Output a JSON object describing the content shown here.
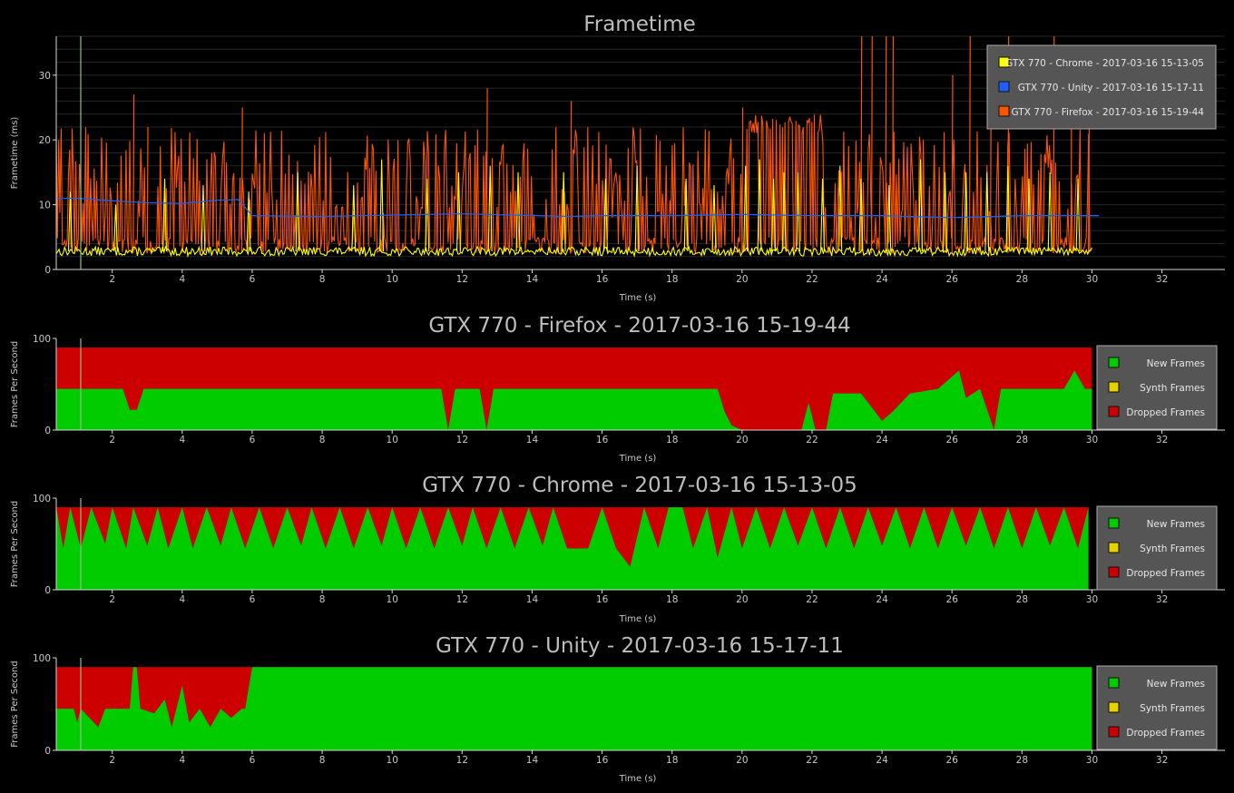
{
  "colors": {
    "background": "#000000",
    "grid": "#262626",
    "axis": "#d9d9d9",
    "chrome": "#ffff00",
    "unity": "#1f5fff",
    "firefox": "#ff5500",
    "new_frames": "#00cc00",
    "synth_frames": "#e6d200",
    "dropped_frames": "#cc0000",
    "legend_bg": "#555555",
    "cursor": "#90c08a"
  },
  "chart_data": [
    {
      "type": "line",
      "title": "Frametime",
      "xlabel": "Time (s)",
      "ylabel": "Frametime (ms)",
      "xlim": [
        0.4,
        33.8
      ],
      "ylim": [
        0,
        36
      ],
      "xticks": [
        "2",
        "4",
        "6",
        "8",
        "10",
        "12",
        "14",
        "16",
        "18",
        "20",
        "22",
        "24",
        "26",
        "28",
        "30",
        "32"
      ],
      "yticks": [
        "0",
        "10",
        "20",
        "30"
      ],
      "legend_position": "top-right",
      "cursor_x": 1.1,
      "series": [
        {
          "name": "GTX 770 - Chrome - 2017-03-16 15-13-05",
          "color_key": "chrome",
          "x_range": [
            0.4,
            30.0
          ],
          "baseline_ms": 2.8,
          "spike_ms": [
            8,
            22
          ],
          "spikes": [
            [
              0.8,
              12
            ],
            [
              2.1,
              10
            ],
            [
              3.5,
              14
            ],
            [
              4.6,
              13
            ],
            [
              5.9,
              12
            ],
            [
              7.3,
              15
            ],
            [
              8.9,
              13
            ],
            [
              9.7,
              17
            ],
            [
              11.0,
              14
            ],
            [
              11.9,
              15
            ],
            [
              12.8,
              16
            ],
            [
              13.6,
              15
            ],
            [
              14.9,
              15
            ],
            [
              16.1,
              14
            ],
            [
              17.0,
              16
            ],
            [
              18.4,
              14
            ],
            [
              19.2,
              13
            ],
            [
              20.1,
              16
            ],
            [
              20.5,
              17
            ],
            [
              20.9,
              14
            ],
            [
              21.2,
              15
            ],
            [
              21.6,
              15
            ],
            [
              22.3,
              14
            ],
            [
              22.8,
              16
            ],
            [
              23.4,
              14
            ],
            [
              24.2,
              13
            ],
            [
              25.1,
              17
            ],
            [
              25.8,
              15
            ],
            [
              26.4,
              15
            ],
            [
              27.0,
              15
            ],
            [
              27.6,
              16
            ],
            [
              28.2,
              14
            ],
            [
              28.8,
              15
            ],
            [
              29.6,
              14
            ]
          ]
        },
        {
          "name": "GTX 770 - Unity - 2017-03-16 15-17-11",
          "color_key": "unity",
          "x_range": [
            0.4,
            30.2
          ],
          "baseline_ms": 8.3,
          "points": [
            [
              0.4,
              11
            ],
            [
              1.0,
              11
            ],
            [
              2.0,
              10.6
            ],
            [
              3.0,
              10.3
            ],
            [
              4.0,
              10.2
            ],
            [
              5.0,
              10.7
            ],
            [
              5.6,
              10.8
            ],
            [
              6.0,
              8.3
            ],
            [
              8.0,
              8.2
            ],
            [
              12.0,
              8.6
            ],
            [
              15.0,
              8.2
            ],
            [
              16.0,
              8.3
            ],
            [
              18.0,
              8.3
            ],
            [
              20.0,
              8.5
            ],
            [
              22.0,
              8.3
            ],
            [
              24.0,
              8.3
            ],
            [
              26.0,
              8.0
            ],
            [
              28.0,
              8.3
            ],
            [
              30.2,
              8.3
            ]
          ]
        },
        {
          "name": "GTX 770 - Firefox - 2017-03-16 15-19-44",
          "color_key": "firefox",
          "x_range": [
            0.4,
            30.0
          ],
          "baseline_ms": 2.5,
          "spike_ms": [
            8,
            22
          ]
        }
      ]
    },
    {
      "type": "area",
      "title": "GTX 770 - Firefox - 2017-03-16 15-19-44",
      "xlabel": "Time (s)",
      "ylabel": "Frames Per Second",
      "xlim": [
        0.4,
        33.8
      ],
      "ylim": [
        0,
        100
      ],
      "xticks": [
        "2",
        "4",
        "6",
        "8",
        "10",
        "12",
        "14",
        "16",
        "18",
        "20",
        "22",
        "24",
        "26",
        "28",
        "30",
        "32"
      ],
      "yticks": [
        "0",
        "100"
      ],
      "legend_position": "right",
      "total_fps": 90,
      "x_end": 30.0,
      "series": [
        {
          "name": "New Frames",
          "color_key": "new_frames",
          "points": [
            [
              0.4,
              45
            ],
            [
              2.3,
              45
            ],
            [
              2.5,
              22
            ],
            [
              2.7,
              22
            ],
            [
              2.9,
              45
            ],
            [
              11.4,
              45
            ],
            [
              11.6,
              0
            ],
            [
              11.8,
              45
            ],
            [
              12.5,
              45
            ],
            [
              12.7,
              0
            ],
            [
              12.9,
              45
            ],
            [
              19.3,
              45
            ],
            [
              19.5,
              20
            ],
            [
              19.7,
              5
            ],
            [
              20.0,
              0
            ],
            [
              21.7,
              0
            ],
            [
              21.9,
              30
            ],
            [
              22.1,
              0
            ],
            [
              22.4,
              0
            ],
            [
              22.6,
              40
            ],
            [
              23.4,
              40
            ],
            [
              23.6,
              30
            ],
            [
              24.0,
              10
            ],
            [
              24.3,
              20
            ],
            [
              24.8,
              40
            ],
            [
              25.6,
              45
            ],
            [
              26.2,
              65
            ],
            [
              26.4,
              35
            ],
            [
              26.8,
              45
            ],
            [
              27.2,
              0
            ],
            [
              27.4,
              45
            ],
            [
              29.2,
              45
            ],
            [
              29.5,
              65
            ],
            [
              29.8,
              45
            ],
            [
              30.0,
              45
            ]
          ]
        },
        {
          "name": "Synth Frames",
          "color_key": "synth_frames",
          "points": []
        },
        {
          "name": "Dropped Frames",
          "color_key": "dropped_frames",
          "points": []
        }
      ]
    },
    {
      "type": "area",
      "title": "GTX 770 - Chrome - 2017-03-16 15-13-05",
      "xlabel": "Time (s)",
      "ylabel": "Frames Per Second",
      "xlim": [
        0.4,
        33.8
      ],
      "ylim": [
        0,
        100
      ],
      "xticks": [
        "2",
        "4",
        "6",
        "8",
        "10",
        "12",
        "14",
        "16",
        "18",
        "20",
        "22",
        "24",
        "26",
        "28",
        "30",
        "32"
      ],
      "yticks": [
        "0",
        "100"
      ],
      "legend_position": "right",
      "total_fps": 90,
      "x_end": 29.9,
      "series": [
        {
          "name": "New Frames",
          "color_key": "new_frames",
          "points": [
            [
              0.4,
              90
            ],
            [
              0.6,
              45
            ],
            [
              0.8,
              90
            ],
            [
              1.1,
              45
            ],
            [
              1.4,
              90
            ],
            [
              1.8,
              50
            ],
            [
              2.0,
              90
            ],
            [
              2.4,
              45
            ],
            [
              2.6,
              90
            ],
            [
              3.0,
              48
            ],
            [
              3.3,
              90
            ],
            [
              3.6,
              45
            ],
            [
              4.0,
              90
            ],
            [
              4.3,
              45
            ],
            [
              4.7,
              90
            ],
            [
              5.1,
              48
            ],
            [
              5.4,
              90
            ],
            [
              5.8,
              45
            ],
            [
              6.2,
              90
            ],
            [
              6.6,
              45
            ],
            [
              7.0,
              90
            ],
            [
              7.4,
              48
            ],
            [
              7.7,
              90
            ],
            [
              8.1,
              45
            ],
            [
              8.5,
              90
            ],
            [
              8.9,
              45
            ],
            [
              9.3,
              90
            ],
            [
              9.7,
              48
            ],
            [
              10.0,
              90
            ],
            [
              10.4,
              45
            ],
            [
              10.8,
              90
            ],
            [
              11.2,
              45
            ],
            [
              11.6,
              90
            ],
            [
              12.0,
              48
            ],
            [
              12.3,
              90
            ],
            [
              12.7,
              45
            ],
            [
              13.1,
              90
            ],
            [
              13.5,
              45
            ],
            [
              13.9,
              90
            ],
            [
              14.3,
              48
            ],
            [
              14.6,
              90
            ],
            [
              15.0,
              45
            ],
            [
              15.6,
              45
            ],
            [
              16.0,
              90
            ],
            [
              16.4,
              45
            ],
            [
              16.8,
              25
            ],
            [
              17.2,
              90
            ],
            [
              17.6,
              45
            ],
            [
              17.9,
              90
            ],
            [
              18.3,
              90
            ],
            [
              18.6,
              45
            ],
            [
              19.0,
              90
            ],
            [
              19.3,
              35
            ],
            [
              19.7,
              90
            ],
            [
              20.0,
              45
            ],
            [
              20.4,
              90
            ],
            [
              20.8,
              45
            ],
            [
              21.2,
              90
            ],
            [
              21.6,
              48
            ],
            [
              22.0,
              90
            ],
            [
              22.4,
              45
            ],
            [
              22.8,
              90
            ],
            [
              23.2,
              45
            ],
            [
              23.6,
              90
            ],
            [
              24.0,
              48
            ],
            [
              24.4,
              90
            ],
            [
              24.8,
              45
            ],
            [
              25.2,
              90
            ],
            [
              25.6,
              45
            ],
            [
              26.0,
              90
            ],
            [
              26.4,
              48
            ],
            [
              26.8,
              90
            ],
            [
              27.2,
              45
            ],
            [
              27.6,
              90
            ],
            [
              28.0,
              45
            ],
            [
              28.4,
              90
            ],
            [
              28.8,
              48
            ],
            [
              29.2,
              90
            ],
            [
              29.6,
              45
            ],
            [
              29.9,
              90
            ]
          ]
        },
        {
          "name": "Synth Frames",
          "color_key": "synth_frames",
          "points": []
        },
        {
          "name": "Dropped Frames",
          "color_key": "dropped_frames",
          "points": []
        }
      ]
    },
    {
      "type": "area",
      "title": "GTX 770 - Unity - 2017-03-16 15-17-11",
      "xlabel": "Time (s)",
      "ylabel": "Frames Per Second",
      "xlim": [
        0.4,
        33.8
      ],
      "ylim": [
        0,
        100
      ],
      "xticks": [
        "2",
        "4",
        "6",
        "8",
        "10",
        "12",
        "14",
        "16",
        "18",
        "20",
        "22",
        "24",
        "26",
        "28",
        "30",
        "32"
      ],
      "yticks": [
        "0",
        "100"
      ],
      "legend_position": "right",
      "total_fps": 90,
      "x_end": 30.0,
      "series": [
        {
          "name": "New Frames",
          "color_key": "new_frames",
          "points": [
            [
              0.4,
              45
            ],
            [
              0.9,
              45
            ],
            [
              1.0,
              30
            ],
            [
              1.1,
              45
            ],
            [
              1.6,
              25
            ],
            [
              1.8,
              45
            ],
            [
              2.2,
              45
            ],
            [
              2.5,
              45
            ],
            [
              2.6,
              90
            ],
            [
              2.7,
              90
            ],
            [
              2.8,
              45
            ],
            [
              3.2,
              40
            ],
            [
              3.5,
              55
            ],
            [
              3.7,
              25
            ],
            [
              4.0,
              70
            ],
            [
              4.2,
              30
            ],
            [
              4.5,
              45
            ],
            [
              4.8,
              25
            ],
            [
              5.1,
              45
            ],
            [
              5.4,
              35
            ],
            [
              5.7,
              45
            ],
            [
              5.8,
              45
            ],
            [
              6.0,
              90
            ],
            [
              30.0,
              90
            ]
          ]
        },
        {
          "name": "Synth Frames",
          "color_key": "synth_frames",
          "points": []
        },
        {
          "name": "Dropped Frames",
          "color_key": "dropped_frames",
          "points": []
        }
      ]
    }
  ]
}
